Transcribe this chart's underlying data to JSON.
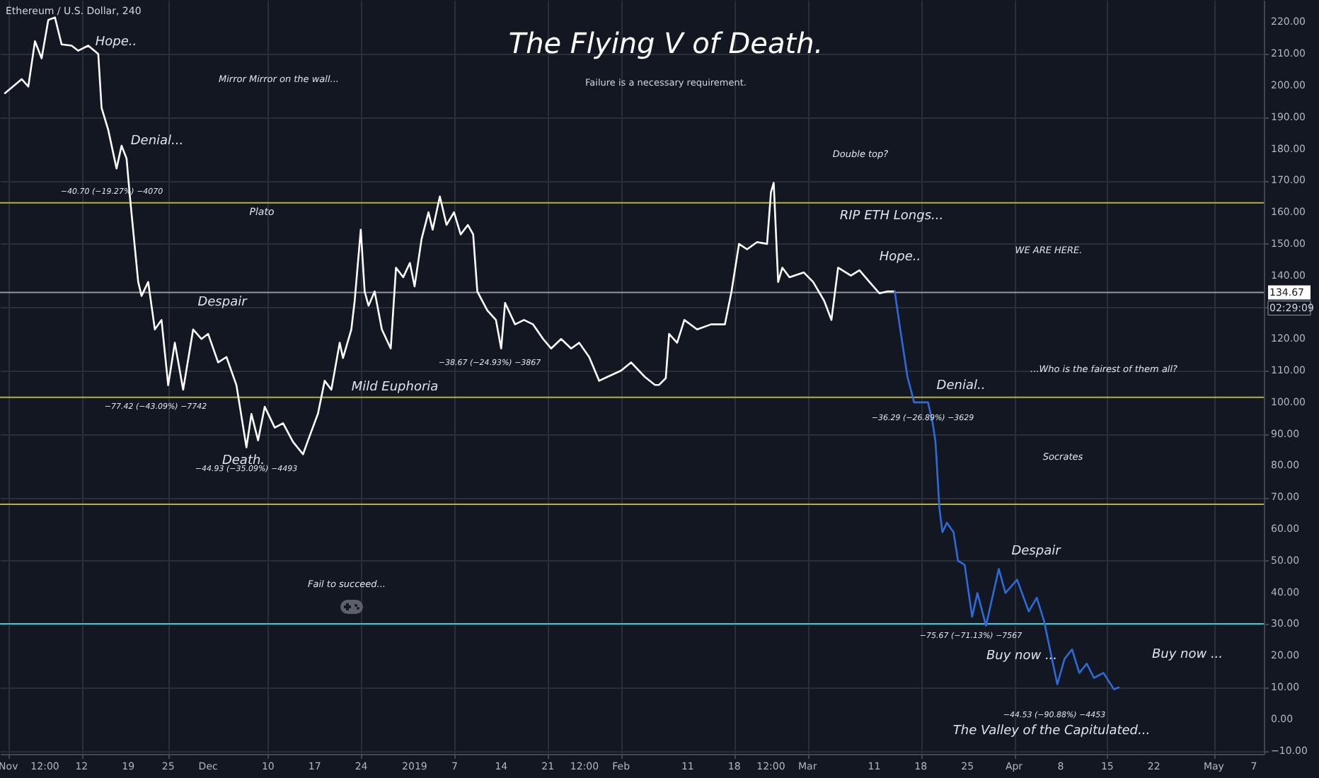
{
  "chart_data": {
    "type": "line",
    "title": "The Flying V of Death.",
    "subtitle": "Failure is a necessary requirement.",
    "xlim": [
      "2018-10-30T18:00",
      "2019-05-08T12:00"
    ],
    "xticks": [
      {
        "value": "2018-11-01T00:00",
        "label": "Nov"
      },
      {
        "value": "2018-11-06T12:00",
        "label": "12:00"
      },
      {
        "value": "2018-11-12T00:00",
        "label": "12"
      },
      {
        "value": "2018-11-19T00:00",
        "label": "19"
      },
      {
        "value": "2018-11-25T00:00",
        "label": "25"
      },
      {
        "value": "2018-12-01T00:00",
        "label": "Dec"
      },
      {
        "value": "2018-12-10T00:00",
        "label": "10"
      },
      {
        "value": "2018-12-17T00:00",
        "label": "17"
      },
      {
        "value": "2018-12-24T00:00",
        "label": "24"
      },
      {
        "value": "2019-01-01T00:00",
        "label": "2019"
      },
      {
        "value": "2019-01-07T00:00",
        "label": "7"
      },
      {
        "value": "2019-01-14T00:00",
        "label": "14"
      },
      {
        "value": "2019-01-21T00:00",
        "label": "21"
      },
      {
        "value": "2019-01-26T12:00",
        "label": "12:00"
      },
      {
        "value": "2019-02-01T00:00",
        "label": "Feb"
      },
      {
        "value": "2019-02-11T00:00",
        "label": "11"
      },
      {
        "value": "2019-02-18T00:00",
        "label": "18"
      },
      {
        "value": "2019-02-23T12:00",
        "label": "12:00"
      },
      {
        "value": "2019-03-01T00:00",
        "label": "Mar"
      },
      {
        "value": "2019-03-11T00:00",
        "label": "11"
      },
      {
        "value": "2019-03-18T00:00",
        "label": "18"
      },
      {
        "value": "2019-03-25T00:00",
        "label": "25"
      },
      {
        "value": "2019-04-01T00:00",
        "label": "Apr"
      },
      {
        "value": "2019-04-08T00:00",
        "label": "8"
      },
      {
        "value": "2019-04-15T00:00",
        "label": "15"
      },
      {
        "value": "2019-04-22T00:00",
        "label": "22"
      },
      {
        "value": "2019-05-01T00:00",
        "label": "May"
      },
      {
        "value": "2019-05-07T00:00",
        "label": "7"
      }
    ],
    "ylim": [
      -11,
      227
    ],
    "yticks": [
      {
        "value": -10,
        "label": "−10.00"
      },
      {
        "value": 0,
        "label": "0.00"
      },
      {
        "value": 10,
        "label": "10.00"
      },
      {
        "value": 20,
        "label": "20.00"
      },
      {
        "value": 30,
        "label": "30.00"
      },
      {
        "value": 40,
        "label": "40.00"
      },
      {
        "value": 50,
        "label": "50.00"
      },
      {
        "value": 60,
        "label": "60.00"
      },
      {
        "value": 70,
        "label": "70.00"
      },
      {
        "value": 80,
        "label": "80.00"
      },
      {
        "value": 90,
        "label": "90.00"
      },
      {
        "value": 100,
        "label": "100.00"
      },
      {
        "value": 110,
        "label": "110.00"
      },
      {
        "value": 120,
        "label": "120.00"
      },
      {
        "value": 130,
        "label": null
      },
      {
        "value": 140,
        "label": "140.00"
      },
      {
        "value": 150,
        "label": "150.00"
      },
      {
        "value": 160,
        "label": "160.00"
      },
      {
        "value": 170,
        "label": "170.00"
      },
      {
        "value": 180,
        "label": "180.00"
      },
      {
        "value": 190,
        "label": "190.00"
      },
      {
        "value": 200,
        "label": "200.00"
      },
      {
        "value": 210,
        "label": "210.00"
      },
      {
        "value": 220,
        "label": "220.00"
      }
    ],
    "grid": true,
    "series": [
      {
        "color": "#ffffff",
        "x": [
          "2018-10-31T12:00",
          "2018-11-03T00:00",
          "2018-11-04T00:00",
          "2018-11-05T00:00",
          "2018-11-06T00:00",
          "2018-11-07T00:00",
          "2018-11-08T00:00",
          "2018-11-09T00:00",
          "2018-11-10T12:00",
          "2018-11-11T12:00",
          "2018-11-13T00:00",
          "2018-11-14T12:00",
          "2018-11-15T00:00",
          "2018-11-16T00:00",
          "2018-11-17T06:00",
          "2018-11-18T00:00",
          "2018-11-18T18:00",
          "2018-11-19T06:00",
          "2018-11-20T12:00",
          "2018-11-21T00:00",
          "2018-11-22T00:00",
          "2018-11-23T00:00",
          "2018-11-24T00:00",
          "2018-11-25T00:00",
          "2018-11-26T00:00",
          "2018-11-27T06:00",
          "2018-11-28T18:00",
          "2018-11-30T00:00",
          "2018-12-01T00:00",
          "2018-12-02T12:00",
          "2018-12-03T18:00",
          "2018-12-05T06:00",
          "2018-12-06T18:00",
          "2018-12-07T12:00",
          "2018-12-08T12:00",
          "2018-12-09T12:00",
          "2018-12-11T00:00",
          "2018-12-12T06:00",
          "2018-12-13T18:00",
          "2018-12-15T06:00",
          "2018-12-16T00:00",
          "2018-12-17T12:00",
          "2018-12-18T12:00",
          "2018-12-19T12:00",
          "2018-12-20T18:00",
          "2018-12-21T06:00",
          "2018-12-22T12:00",
          "2018-12-23T00:00",
          "2018-12-23T22:00",
          "2018-12-24T12:00",
          "2018-12-25T02:00",
          "2018-12-26T00:00",
          "2018-12-27T02:00",
          "2018-12-28T10:00",
          "2018-12-29T05:00",
          "2018-12-30T07:00",
          "2018-12-31T07:00",
          "2019-01-01T00:00",
          "2019-01-02T01:00",
          "2019-01-03T02:00",
          "2019-01-03T17:00",
          "2019-01-04T19:00",
          "2019-01-05T19:00",
          "2019-01-06T22:00",
          "2019-01-07T22:00",
          "2019-01-09T00:00",
          "2019-01-09T19:00",
          "2019-01-10T10:00",
          "2019-01-11T22:00",
          "2019-01-13T05:00",
          "2019-01-14T00:00",
          "2019-01-14T14:00",
          "2019-01-16T02:00",
          "2019-01-17T10:00",
          "2019-01-18T19:00",
          "2019-01-20T07:00",
          "2019-01-21T12:00",
          "2019-01-23T00:00",
          "2019-01-24T12:00",
          "2019-01-25T17:00",
          "2019-01-27T05:00",
          "2019-01-28T17:00",
          "2019-01-29T22:00",
          "2019-02-01T00:00",
          "2019-02-02T12:00",
          "2019-02-04T14:00",
          "2019-02-06T02:00",
          "2019-02-06T17:00",
          "2019-02-07T17:00",
          "2019-02-08T05:00",
          "2019-02-09T10:00",
          "2019-02-10T12:00",
          "2019-02-12T10:00",
          "2019-02-14T12:00",
          "2019-02-16T14:00",
          "2019-02-17T14:00",
          "2019-02-18T17:00",
          "2019-02-19T22:00",
          "2019-02-21T10:00",
          "2019-02-22T22:00",
          "2019-02-23T12:00",
          "2019-02-23T22:00",
          "2019-02-24T14:00",
          "2019-02-25T05:00",
          "2019-02-26T07:00",
          "2019-02-28T10:00",
          "2019-03-01T20:00",
          "2019-03-03T12:00",
          "2019-03-04T14:00",
          "2019-03-05T14:00",
          "2019-03-07T12:00",
          "2019-03-08T19:00",
          "2019-03-10T07:00",
          "2019-03-11T19:00",
          "2019-03-13T00:00",
          "2019-03-14T02:00"
        ],
        "values": [
          197.6,
          202,
          199.7,
          214,
          208.6,
          220.7,
          221.5,
          213,
          212.6,
          211,
          212.6,
          210,
          193,
          186,
          173.8,
          181,
          177,
          165,
          138,
          133.6,
          138,
          123,
          126,
          105.4,
          118.8,
          104,
          123,
          120,
          121.6,
          112.6,
          114.3,
          105.4,
          85.8,
          96.3,
          88,
          98.6,
          92,
          93.4,
          87.5,
          83.6,
          88,
          96.5,
          106.8,
          104,
          118.8,
          114,
          123,
          132,
          154.5,
          135,
          130.5,
          135,
          123,
          117,
          142.5,
          139.5,
          144,
          136.6,
          151.5,
          160,
          154.5,
          165,
          156,
          160,
          153,
          156,
          153,
          135,
          129,
          126,
          117,
          131.4,
          124.6,
          126,
          124.6,
          120,
          117,
          120,
          117,
          118.8,
          114.3,
          106.8,
          108,
          110,
          112.6,
          108,
          105.5,
          105.5,
          107.6,
          121.6,
          118.8,
          126,
          123,
          124.6,
          124.6,
          135,
          150,
          148.3,
          150.6,
          150,
          166.3,
          169.3,
          138,
          142.5,
          139.5,
          141,
          138,
          132,
          126,
          142.5,
          140,
          141.7,
          138,
          134.4,
          135,
          135
        ]
      },
      {
        "color": "#2f6bd8",
        "x": [
          "2019-03-14T02:00",
          "2019-03-14T22:00",
          "2019-03-16T00:00",
          "2019-03-17T00:00",
          "2019-03-19T02:00",
          "2019-03-19T19:00",
          "2019-03-20T05:00",
          "2019-03-20T19:00",
          "2019-03-21T06:00",
          "2019-03-21T22:00",
          "2019-03-22T22:00",
          "2019-03-23T14:00",
          "2019-03-24T14:00",
          "2019-03-25T17:00",
          "2019-03-26T12:00",
          "2019-03-27T19:00",
          "2019-03-29T17:00",
          "2019-03-30T17:00",
          "2019-04-01T11:00",
          "2019-04-03T05:00",
          "2019-04-04T10:00",
          "2019-04-05T12:00",
          "2019-04-07T12:00",
          "2019-04-08T14:00",
          "2019-04-09T17:00",
          "2019-04-10T19:00",
          "2019-04-11T22:00",
          "2019-04-13T00:00",
          "2019-04-14T10:00",
          "2019-04-16T00:00",
          "2019-04-16T17:00"
        ],
        "values": [
          135,
          123,
          108,
          100,
          100,
          93.4,
          87.5,
          66.6,
          59,
          62,
          59,
          50,
          48.7,
          32.3,
          39.8,
          29.5,
          47.4,
          39.8,
          44,
          34,
          38.3,
          31,
          11,
          19,
          22,
          14.6,
          17.5,
          13,
          14.6,
          9.4,
          10
        ]
      }
    ],
    "ref_lines": [
      {
        "axis": "y",
        "value": 163,
        "color": "#b5b23c"
      },
      {
        "axis": "y",
        "value": 101.6,
        "color": "#b5b23c"
      },
      {
        "axis": "y",
        "value": 67.8,
        "color": "#b5b23c"
      },
      {
        "axis": "y",
        "value": 30.1,
        "color": "#3cc6d6"
      },
      {
        "axis": "y",
        "value": 134.67,
        "label": "134.67",
        "color": "#9598a1"
      }
    ],
    "annotations": [
      "Ethereum / U.S. Dollar, 240",
      "02:29:09",
      "Hope..",
      "Mirror Mirror on the wall...",
      "Denial...",
      "Plato",
      "Despair",
      "Mild Euphoria",
      "Death.",
      "Fail to succeed...",
      "Double top?",
      "RIP ETH Longs...",
      "Hope..",
      "WE ARE HERE.",
      "...Who is the fairest of them all?",
      "Denial..",
      "Socrates",
      "Despair",
      "Buy now ...",
      "Buy now ...",
      "The Valley of the Capitulated...",
      "−40.70 (−19.27%) −4070",
      "−77.42 (−43.09%) −7742",
      "−44.93 (−35.09%) −4493",
      "−38.67 (−24.93%) −3867",
      "−36.29 (−26.89%) −3629",
      "−75.67 (−71.13%) −7567",
      "−44.53 (−90.88%) −4453"
    ]
  }
}
